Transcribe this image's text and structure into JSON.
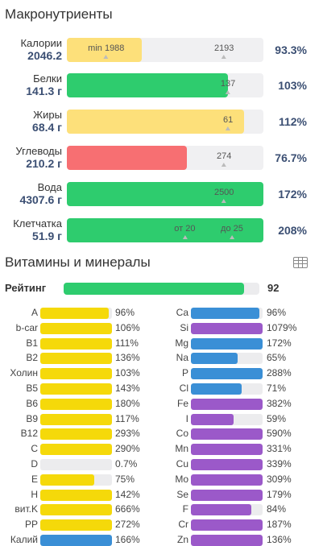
{
  "macros": {
    "title": "Макронутриенты",
    "rows": [
      {
        "name": "Калории",
        "value": "2046.2",
        "pct": "93.3%",
        "fill_pct": 38,
        "color": "#fde07a",
        "markers": [
          {
            "label": "min 1988",
            "pos_pct": 20
          },
          {
            "label": "2193",
            "pos_pct": 80
          }
        ]
      },
      {
        "name": "Белки",
        "value": "141.3 г",
        "pct": "103%",
        "fill_pct": 82,
        "color": "#2ecc6e",
        "markers": [
          {
            "label": "137",
            "pos_pct": 82
          }
        ]
      },
      {
        "name": "Жиры",
        "value": "68.4 г",
        "pct": "112%",
        "fill_pct": 90,
        "color": "#fde07a",
        "markers": [
          {
            "label": "61",
            "pos_pct": 82
          }
        ]
      },
      {
        "name": "Углеводы",
        "value": "210.2 г",
        "pct": "76.7%",
        "fill_pct": 61,
        "color": "#f76f72",
        "markers": [
          {
            "label": "274",
            "pos_pct": 80
          }
        ]
      },
      {
        "name": "Вода",
        "value": "4307.6 г",
        "pct": "172%",
        "fill_pct": 100,
        "color": "#2ecc6e",
        "markers": [
          {
            "label": "2500",
            "pos_pct": 80
          }
        ]
      },
      {
        "name": "Клетчатка",
        "value": "51.9 г",
        "pct": "208%",
        "fill_pct": 100,
        "color": "#2ecc6e",
        "markers": [
          {
            "label": "от 20",
            "pos_pct": 60
          },
          {
            "label": "до 25",
            "pos_pct": 84
          }
        ]
      }
    ]
  },
  "vitamins": {
    "title": "Витамины и минералы",
    "rating_label": "Рейтинг",
    "rating_value": "92",
    "rating_fill": 92,
    "icon": "table-icon",
    "colors": {
      "vitamin": "#f5d90a",
      "mineral_blue": "#3a8fd6",
      "mineral_purple": "#9b59c9"
    },
    "left": [
      {
        "label": "A",
        "pct": "96%",
        "fill": 96,
        "color": "#f5d90a"
      },
      {
        "label": "b-car",
        "pct": "106%",
        "fill": 100,
        "color": "#f5d90a"
      },
      {
        "label": "B1",
        "pct": "111%",
        "fill": 100,
        "color": "#f5d90a"
      },
      {
        "label": "B2",
        "pct": "136%",
        "fill": 100,
        "color": "#f5d90a"
      },
      {
        "label": "Холин",
        "pct": "103%",
        "fill": 100,
        "color": "#f5d90a"
      },
      {
        "label": "B5",
        "pct": "143%",
        "fill": 100,
        "color": "#f5d90a"
      },
      {
        "label": "B6",
        "pct": "180%",
        "fill": 100,
        "color": "#f5d90a"
      },
      {
        "label": "B9",
        "pct": "117%",
        "fill": 100,
        "color": "#f5d90a"
      },
      {
        "label": "B12",
        "pct": "293%",
        "fill": 100,
        "color": "#f5d90a"
      },
      {
        "label": "C",
        "pct": "290%",
        "fill": 100,
        "color": "#f5d90a"
      },
      {
        "label": "D",
        "pct": "0.7%",
        "fill": 0,
        "color": "#f5d90a"
      },
      {
        "label": "E",
        "pct": "75%",
        "fill": 75,
        "color": "#f5d90a"
      },
      {
        "label": "H",
        "pct": "142%",
        "fill": 100,
        "color": "#f5d90a"
      },
      {
        "label": "вит.K",
        "pct": "666%",
        "fill": 100,
        "color": "#f5d90a"
      },
      {
        "label": "PP",
        "pct": "272%",
        "fill": 100,
        "color": "#f5d90a"
      },
      {
        "label": "Калий",
        "pct": "166%",
        "fill": 100,
        "color": "#3a8fd6"
      }
    ],
    "right": [
      {
        "label": "Ca",
        "pct": "96%",
        "fill": 96,
        "color": "#3a8fd6"
      },
      {
        "label": "Si",
        "pct": "1079%",
        "fill": 100,
        "color": "#9b59c9"
      },
      {
        "label": "Mg",
        "pct": "172%",
        "fill": 100,
        "color": "#3a8fd6"
      },
      {
        "label": "Na",
        "pct": "65%",
        "fill": 65,
        "color": "#3a8fd6"
      },
      {
        "label": "P",
        "pct": "288%",
        "fill": 100,
        "color": "#3a8fd6"
      },
      {
        "label": "Cl",
        "pct": "71%",
        "fill": 71,
        "color": "#3a8fd6"
      },
      {
        "label": "Fe",
        "pct": "382%",
        "fill": 100,
        "color": "#9b59c9"
      },
      {
        "label": "I",
        "pct": "59%",
        "fill": 59,
        "color": "#9b59c9"
      },
      {
        "label": "Co",
        "pct": "590%",
        "fill": 100,
        "color": "#9b59c9"
      },
      {
        "label": "Mn",
        "pct": "331%",
        "fill": 100,
        "color": "#9b59c9"
      },
      {
        "label": "Cu",
        "pct": "339%",
        "fill": 100,
        "color": "#9b59c9"
      },
      {
        "label": "Mo",
        "pct": "309%",
        "fill": 100,
        "color": "#9b59c9"
      },
      {
        "label": "Se",
        "pct": "179%",
        "fill": 100,
        "color": "#9b59c9"
      },
      {
        "label": "F",
        "pct": "84%",
        "fill": 84,
        "color": "#9b59c9"
      },
      {
        "label": "Cr",
        "pct": "187%",
        "fill": 100,
        "color": "#9b59c9"
      },
      {
        "label": "Zn",
        "pct": "136%",
        "fill": 100,
        "color": "#9b59c9"
      }
    ]
  }
}
